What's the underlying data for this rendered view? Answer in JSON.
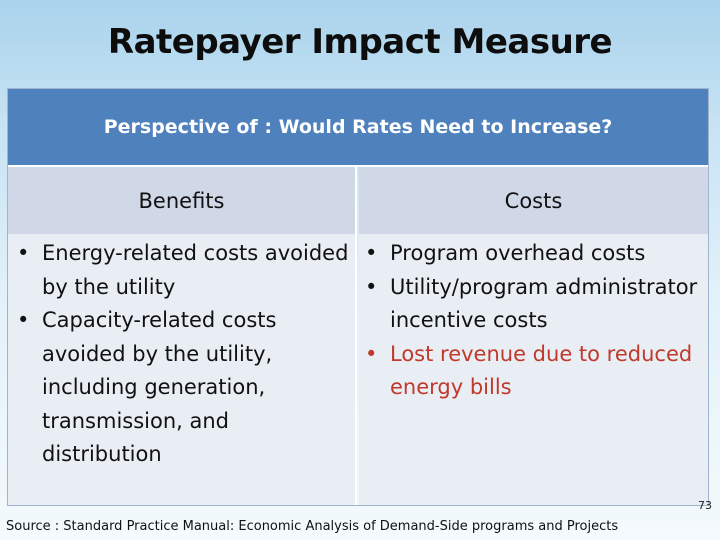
{
  "title": "Ratepayer Impact Measure",
  "table": {
    "header": "Perspective of : Would Rates Need to Increase?",
    "columns": [
      {
        "heading": "Benefits",
        "items": [
          {
            "text": "Energy-related costs avoided by the utility",
            "highlight": false
          },
          {
            "text": "Capacity-related costs avoided by the utility, including generation, transmission, and distribution",
            "highlight": false
          }
        ]
      },
      {
        "heading": "Costs",
        "items": [
          {
            "text": "Program overhead costs",
            "highlight": false
          },
          {
            "text": "Utility/program administrator incentive costs",
            "highlight": false
          },
          {
            "text": "Lost revenue due to reduced energy bills",
            "highlight": true
          }
        ]
      }
    ]
  },
  "page_number": "73",
  "source": "Source : Standard Practice Manual: Economic Analysis of Demand-Side programs and Projects",
  "colors": {
    "header_bg": "#4f81bd",
    "column_head_bg": "#d0d8e8",
    "column_body_bg": "#e9edf4",
    "highlight": "#c0392b"
  }
}
